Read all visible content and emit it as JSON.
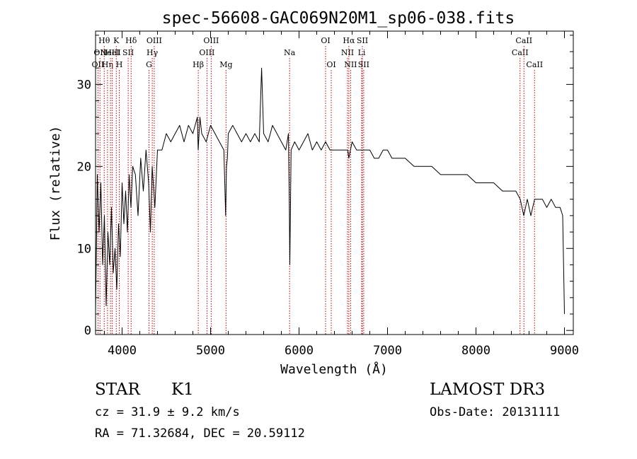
{
  "chart_data": {
    "type": "line",
    "title": "spec-56608-GAC069N20M1_sp06-038.fits",
    "xlabel": "Wavelength (Å)",
    "ylabel": "Flux (relative)",
    "xlim": [
      3700,
      9100
    ],
    "ylim": [
      -0.5,
      36.5
    ],
    "x_ticks": [
      4000,
      5000,
      6000,
      7000,
      8000,
      9000
    ],
    "y_ticks": [
      0,
      10,
      20,
      30
    ],
    "grid": false,
    "series": [
      {
        "name": "flux",
        "x": [
          3700,
          3720,
          3740,
          3760,
          3780,
          3800,
          3820,
          3840,
          3860,
          3880,
          3900,
          3920,
          3940,
          3960,
          3980,
          4000,
          4020,
          4040,
          4060,
          4080,
          4100,
          4120,
          4150,
          4180,
          4210,
          4240,
          4270,
          4300,
          4320,
          4340,
          4370,
          4400,
          4450,
          4500,
          4550,
          4600,
          4650,
          4700,
          4750,
          4800,
          4850,
          4860,
          4880,
          4900,
          4950,
          5000,
          5050,
          5100,
          5150,
          5170,
          5180,
          5190,
          5200,
          5250,
          5300,
          5350,
          5400,
          5450,
          5500,
          5550,
          5577,
          5600,
          5650,
          5700,
          5750,
          5800,
          5850,
          5880,
          5890,
          5896,
          5900,
          5910,
          5950,
          6000,
          6050,
          6100,
          6150,
          6200,
          6250,
          6300,
          6350,
          6400,
          6450,
          6500,
          6550,
          6563,
          6600,
          6650,
          6700,
          6750,
          6800,
          6850,
          6900,
          6950,
          7000,
          7050,
          7100,
          7150,
          7200,
          7300,
          7400,
          7500,
          7600,
          7700,
          7800,
          7900,
          8000,
          8100,
          8200,
          8300,
          8400,
          8450,
          8500,
          8540,
          8580,
          8620,
          8662,
          8700,
          8750,
          8800,
          8850,
          8900,
          8950,
          8980,
          9000
        ],
        "values": [
          2,
          19,
          12,
          18,
          8,
          14,
          3,
          12,
          8,
          15,
          7,
          10,
          5,
          13,
          9,
          18,
          13,
          17,
          12,
          19,
          15,
          20,
          19,
          14,
          21,
          17,
          22,
          18,
          12,
          20,
          15,
          22,
          22,
          24,
          23,
          24,
          25,
          23,
          25,
          24,
          26,
          22,
          26,
          24,
          23,
          25,
          24,
          23,
          22,
          14,
          20,
          21,
          24,
          25,
          24,
          23,
          24,
          23,
          24,
          23,
          32,
          24,
          23,
          25,
          24,
          23,
          22,
          24,
          15,
          8,
          12,
          22,
          23,
          22,
          23,
          24,
          22,
          23,
          22,
          23,
          22,
          22,
          22,
          22,
          22,
          21,
          23,
          22,
          22,
          22,
          22,
          21,
          21,
          22,
          22,
          21,
          21,
          21,
          21,
          20,
          20,
          20,
          19,
          19,
          19,
          19,
          18,
          18,
          18,
          17,
          17,
          17,
          16,
          14,
          16,
          14,
          16,
          16,
          16,
          15,
          16,
          15,
          15,
          14,
          2
        ]
      }
    ],
    "line_markers": [
      {
        "wavelength": 3727,
        "label": "OII",
        "row": 2
      },
      {
        "wavelength": 3750,
        "label": "OII",
        "row": 1
      },
      {
        "wavelength": 3798,
        "label": "Hθ",
        "row": 0
      },
      {
        "wavelength": 3835,
        "label": "Hη",
        "row": 2
      },
      {
        "wavelength": 3869,
        "label": "NeIII",
        "row": 1
      },
      {
        "wavelength": 3889,
        "label": "HeI",
        "row": 1
      },
      {
        "wavelength": 3934,
        "label": "K",
        "row": 0
      },
      {
        "wavelength": 3968,
        "label": "H",
        "row": 2
      },
      {
        "wavelength": 4069,
        "label": "SII",
        "row": 1
      },
      {
        "wavelength": 4102,
        "label": "Hδ",
        "row": 0
      },
      {
        "wavelength": 4304,
        "label": "G",
        "row": 2
      },
      {
        "wavelength": 4341,
        "label": "Hγ",
        "row": 1
      },
      {
        "wavelength": 4363,
        "label": "OIII",
        "row": 0
      },
      {
        "wavelength": 4861,
        "label": "Hβ",
        "row": 2
      },
      {
        "wavelength": 4959,
        "label": "OIII",
        "row": 1
      },
      {
        "wavelength": 5007,
        "label": "OIII",
        "row": 0
      },
      {
        "wavelength": 5175,
        "label": "Mg",
        "row": 2
      },
      {
        "wavelength": 5893,
        "label": "Na",
        "row": 1
      },
      {
        "wavelength": 6300,
        "label": "OI",
        "row": 0
      },
      {
        "wavelength": 6364,
        "label": "OI",
        "row": 2
      },
      {
        "wavelength": 6548,
        "label": "NII",
        "row": 1
      },
      {
        "wavelength": 6563,
        "label": "Hα",
        "row": 0
      },
      {
        "wavelength": 6583,
        "label": "NII",
        "row": 2
      },
      {
        "wavelength": 6708,
        "label": "Li",
        "row": 1
      },
      {
        "wavelength": 6716,
        "label": "SII",
        "row": 0
      },
      {
        "wavelength": 6731,
        "label": "SII",
        "row": 2
      },
      {
        "wavelength": 8498,
        "label": "CaII",
        "row": 1
      },
      {
        "wavelength": 8542,
        "label": "CaII",
        "row": 0
      },
      {
        "wavelength": 8662,
        "label": "CaII",
        "row": 2
      }
    ]
  },
  "info": {
    "object_type": "STAR",
    "subclass": "K1",
    "survey": "LAMOST DR3",
    "redshift": "cz = 31.9 ± 9.2 km/s",
    "obs_date": "Obs-Date: 20131111",
    "coords": "RA =  71.32684, DEC =  20.59112"
  }
}
